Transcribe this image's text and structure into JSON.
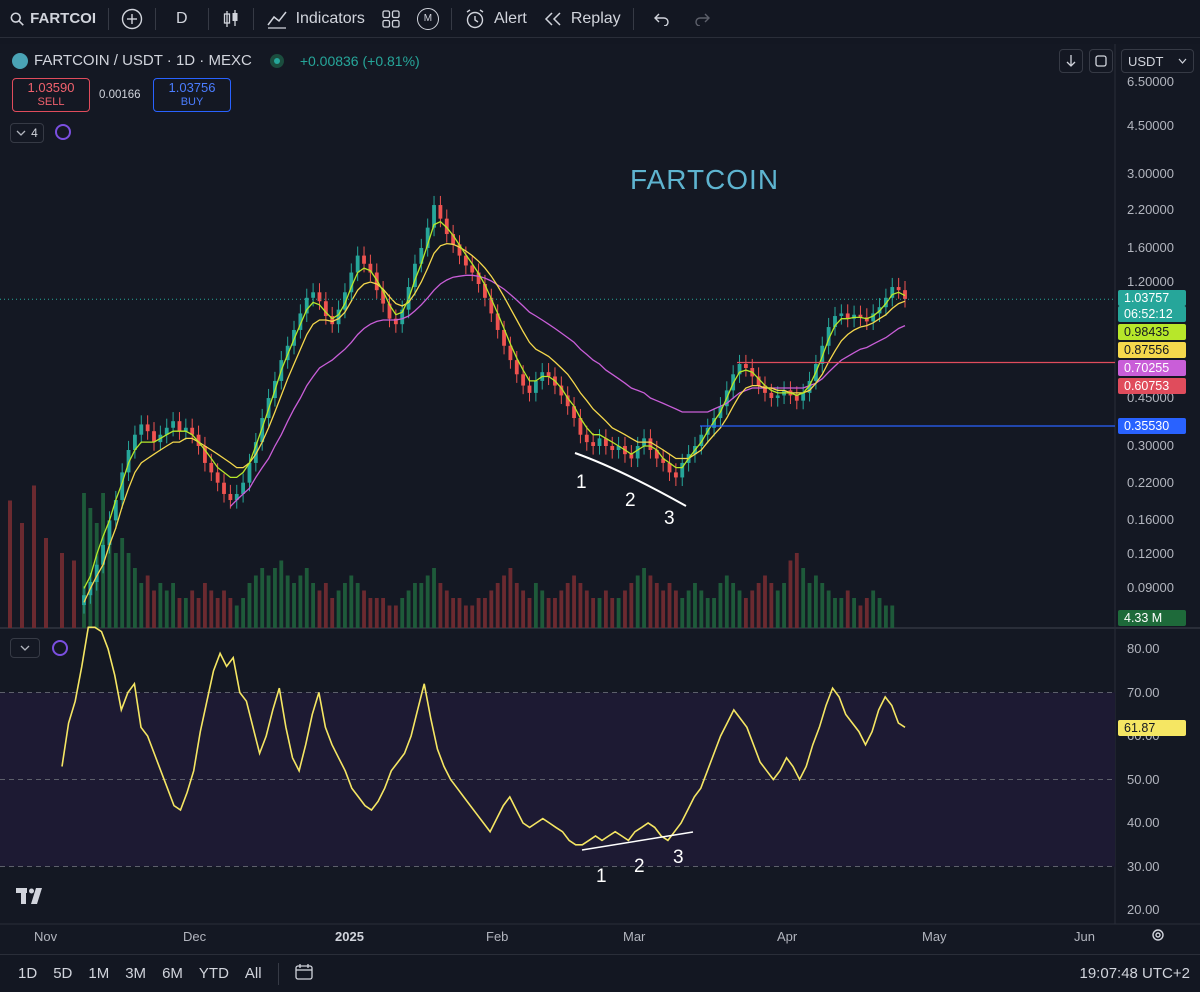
{
  "toolbar": {
    "symbol": "FARTCOI",
    "interval": "D",
    "indicators": "Indicators",
    "templates_badge": "M",
    "alert": "Alert",
    "replay": "Replay"
  },
  "legend": {
    "title": "FARTCOIN / USDT · 1D · MEXC",
    "change": "+0.00836 (+0.81%)",
    "sell_price": "1.03590",
    "sell_label": "SELL",
    "spread": "0.00166",
    "buy_price": "1.03756",
    "buy_label": "BUY",
    "indicator_count": "4",
    "currency": "USDT"
  },
  "chart_data": {
    "type": "candlestick",
    "title": "FARTCOIN",
    "y_scale": "log",
    "y_ticks": [
      "6.50000",
      "4.50000",
      "3.00000",
      "2.20000",
      "1.60000",
      "1.20000",
      "0.45000",
      "0.30000",
      "0.22000",
      "0.16000",
      "0.12000",
      "0.09000"
    ],
    "x_ticks": [
      "Nov",
      "Dec",
      "2025",
      "Feb",
      "Mar",
      "Apr",
      "May",
      "Jun"
    ],
    "price_tags": [
      {
        "value": "1.03757",
        "color": "#26a69a"
      },
      {
        "value": "06:52:12",
        "color": "#26a69a"
      },
      {
        "value": "0.98435",
        "color": "#b7e72a"
      },
      {
        "value": "0.87556",
        "color": "#f5d84c"
      },
      {
        "value": "0.70255",
        "color": "#c95ed8"
      },
      {
        "value": "0.60753",
        "color": "#e04c5c"
      },
      {
        "value": "0.35530",
        "color": "#2962ff"
      }
    ],
    "volume_tag": "4.33 M",
    "horizontal_levels": [
      {
        "value": 0.6075,
        "color": "#e04c5c"
      },
      {
        "value": 0.3553,
        "color": "#2962ff"
      }
    ],
    "annotations": [
      "1",
      "2",
      "3"
    ],
    "closes": [
      0.085,
      0.095,
      0.11,
      0.13,
      0.16,
      0.19,
      0.24,
      0.29,
      0.33,
      0.36,
      0.34,
      0.31,
      0.33,
      0.35,
      0.37,
      0.34,
      0.35,
      0.33,
      0.3,
      0.26,
      0.24,
      0.22,
      0.2,
      0.19,
      0.2,
      0.22,
      0.26,
      0.31,
      0.38,
      0.45,
      0.52,
      0.62,
      0.7,
      0.8,
      0.92,
      1.05,
      1.1,
      1.02,
      0.9,
      0.84,
      0.95,
      1.1,
      1.3,
      1.5,
      1.4,
      1.3,
      1.12,
      1.0,
      0.88,
      0.84,
      0.95,
      1.15,
      1.4,
      1.6,
      1.9,
      2.3,
      2.05,
      1.8,
      1.65,
      1.5,
      1.38,
      1.3,
      1.18,
      1.05,
      0.92,
      0.8,
      0.7,
      0.62,
      0.55,
      0.5,
      0.47,
      0.52,
      0.56,
      0.54,
      0.5,
      0.46,
      0.42,
      0.38,
      0.33,
      0.31,
      0.3,
      0.32,
      0.3,
      0.29,
      0.3,
      0.28,
      0.27,
      0.3,
      0.32,
      0.29,
      0.27,
      0.26,
      0.24,
      0.23,
      0.26,
      0.28,
      0.3,
      0.33,
      0.35,
      0.38,
      0.42,
      0.48,
      0.55,
      0.6,
      0.58,
      0.54,
      0.5,
      0.47,
      0.45,
      0.46,
      0.48,
      0.46,
      0.44,
      0.47,
      0.52,
      0.6,
      0.7,
      0.82,
      0.9,
      0.92,
      0.88,
      0.91,
      0.89,
      0.86,
      0.92,
      0.97,
      1.05,
      1.15,
      1.12,
      1.04
    ],
    "ema_fast": [
      0.09,
      0.1,
      0.12,
      0.14,
      0.16,
      0.19,
      0.22,
      0.26,
      0.29,
      0.31,
      0.31,
      0.31,
      0.32,
      0.33,
      0.34,
      0.34,
      0.34,
      0.33,
      0.31,
      0.29,
      0.27,
      0.25,
      0.24,
      0.23,
      0.23,
      0.24,
      0.26,
      0.3,
      0.35,
      0.41,
      0.48,
      0.57,
      0.65,
      0.74,
      0.84,
      0.95,
      1.01,
      0.99,
      0.93,
      0.88,
      0.91,
      1.0,
      1.15,
      1.3,
      1.35,
      1.32,
      1.22,
      1.11,
      0.99,
      0.91,
      0.93,
      1.04,
      1.22,
      1.4,
      1.65,
      1.95,
      2.0,
      1.9,
      1.78,
      1.64,
      1.51,
      1.4,
      1.29,
      1.17,
      1.04,
      0.92,
      0.81,
      0.71,
      0.63,
      0.57,
      0.52,
      0.52,
      0.54,
      0.54,
      0.52,
      0.49,
      0.45,
      0.42,
      0.38,
      0.35,
      0.33,
      0.33,
      0.32,
      0.31,
      0.3,
      0.29,
      0.28,
      0.29,
      0.3,
      0.3,
      0.29,
      0.27,
      0.26,
      0.25,
      0.25,
      0.27,
      0.29,
      0.31,
      0.34,
      0.37,
      0.4,
      0.45,
      0.51,
      0.56,
      0.57,
      0.56,
      0.53,
      0.5,
      0.48,
      0.47,
      0.47,
      0.47,
      0.46,
      0.47,
      0.5,
      0.56,
      0.64,
      0.74,
      0.83,
      0.88,
      0.88,
      0.89,
      0.89,
      0.88,
      0.9,
      0.94,
      1.0,
      1.08,
      1.1,
      1.07
    ],
    "ema_mid": [
      0.08,
      0.09,
      0.1,
      0.11,
      0.13,
      0.15,
      0.18,
      0.21,
      0.24,
      0.26,
      0.27,
      0.28,
      0.29,
      0.3,
      0.31,
      0.31,
      0.32,
      0.32,
      0.31,
      0.3,
      0.29,
      0.28,
      0.27,
      0.26,
      0.25,
      0.25,
      0.26,
      0.28,
      0.31,
      0.35,
      0.4,
      0.46,
      0.53,
      0.6,
      0.68,
      0.77,
      0.84,
      0.87,
      0.87,
      0.86,
      0.88,
      0.93,
      1.02,
      1.12,
      1.18,
      1.2,
      1.18,
      1.13,
      1.06,
      1.0,
      0.98,
      1.01,
      1.09,
      1.2,
      1.35,
      1.53,
      1.63,
      1.66,
      1.65,
      1.61,
      1.56,
      1.5,
      1.43,
      1.35,
      1.26,
      1.16,
      1.06,
      0.96,
      0.87,
      0.79,
      0.72,
      0.68,
      0.66,
      0.64,
      0.61,
      0.58,
      0.55,
      0.51,
      0.47,
      0.44,
      0.41,
      0.39,
      0.37,
      0.35,
      0.34,
      0.33,
      0.32,
      0.31,
      0.31,
      0.31,
      0.3,
      0.29,
      0.28,
      0.27,
      0.27,
      0.27,
      0.28,
      0.29,
      0.31,
      0.33,
      0.35,
      0.38,
      0.42,
      0.46,
      0.49,
      0.5,
      0.5,
      0.49,
      0.49,
      0.48,
      0.48,
      0.47,
      0.47,
      0.47,
      0.48,
      0.51,
      0.55,
      0.61,
      0.67,
      0.73,
      0.77,
      0.8,
      0.82,
      0.83,
      0.85,
      0.88,
      0.91,
      0.96,
      1.0,
      1.02
    ],
    "ema_slow": [
      null,
      null,
      null,
      null,
      null,
      null,
      null,
      null,
      null,
      null,
      null,
      null,
      null,
      null,
      null,
      null,
      null,
      null,
      null,
      null,
      null,
      null,
      null,
      0.18,
      0.19,
      0.2,
      0.21,
      0.23,
      0.25,
      0.27,
      0.3,
      0.33,
      0.37,
      0.41,
      0.45,
      0.5,
      0.54,
      0.58,
      0.6,
      0.62,
      0.65,
      0.68,
      0.72,
      0.77,
      0.81,
      0.84,
      0.86,
      0.87,
      0.87,
      0.87,
      0.88,
      0.9,
      0.94,
      0.99,
      1.05,
      1.12,
      1.18,
      1.22,
      1.25,
      1.26,
      1.27,
      1.27,
      1.26,
      1.24,
      1.21,
      1.17,
      1.13,
      1.08,
      1.03,
      0.98,
      0.93,
      0.9,
      0.87,
      0.84,
      0.81,
      0.78,
      0.75,
      0.72,
      0.68,
      0.65,
      0.62,
      0.6,
      0.57,
      0.55,
      0.53,
      0.51,
      0.49,
      0.48,
      0.47,
      0.45,
      0.44,
      0.43,
      0.42,
      0.41,
      0.4,
      0.4,
      0.4,
      0.4,
      0.4,
      0.41,
      0.42,
      0.43,
      0.45,
      0.47,
      0.48,
      0.49,
      0.49,
      0.49,
      0.49,
      0.49,
      0.49,
      0.49,
      0.49,
      0.49,
      0.5,
      0.51,
      0.53,
      0.56,
      0.59,
      0.62,
      0.64,
      0.66,
      0.68,
      0.69,
      0.71,
      0.73,
      0.75,
      0.78,
      0.81,
      0.83
    ],
    "volume": [
      0.9,
      0.8,
      0.7,
      0.9,
      0.6,
      0.5,
      0.6,
      0.5,
      0.4,
      0.3,
      0.35,
      0.25,
      0.3,
      0.25,
      0.3,
      0.2,
      0.2,
      0.25,
      0.2,
      0.3,
      0.25,
      0.2,
      0.25,
      0.2,
      0.15,
      0.2,
      0.3,
      0.35,
      0.4,
      0.35,
      0.4,
      0.45,
      0.35,
      0.3,
      0.35,
      0.4,
      0.3,
      0.25,
      0.3,
      0.2,
      0.25,
      0.3,
      0.35,
      0.3,
      0.25,
      0.2,
      0.2,
      0.2,
      0.15,
      0.15,
      0.2,
      0.25,
      0.3,
      0.3,
      0.35,
      0.4,
      0.3,
      0.25,
      0.2,
      0.2,
      0.15,
      0.15,
      0.2,
      0.2,
      0.25,
      0.3,
      0.35,
      0.4,
      0.3,
      0.25,
      0.2,
      0.3,
      0.25,
      0.2,
      0.2,
      0.25,
      0.3,
      0.35,
      0.3,
      0.25,
      0.2,
      0.2,
      0.25,
      0.2,
      0.2,
      0.25,
      0.3,
      0.35,
      0.4,
      0.35,
      0.3,
      0.25,
      0.3,
      0.25,
      0.2,
      0.25,
      0.3,
      0.25,
      0.2,
      0.2,
      0.3,
      0.35,
      0.3,
      0.25,
      0.2,
      0.25,
      0.3,
      0.35,
      0.3,
      0.25,
      0.3,
      0.45,
      0.5,
      0.4,
      0.3,
      0.35,
      0.3,
      0.25,
      0.2,
      0.2,
      0.25,
      0.2,
      0.15,
      0.2,
      0.25,
      0.2,
      0.15,
      0.15
    ],
    "rsi": {
      "current": "61.87",
      "y_ticks": [
        "80.00",
        "70.00",
        "60.00",
        "50.00",
        "40.00",
        "30.00",
        "20.00"
      ],
      "values": [
        53,
        63,
        68,
        76,
        85,
        88,
        84,
        80,
        74,
        66,
        70,
        72,
        62,
        60,
        56,
        52,
        48,
        44,
        43,
        47,
        52,
        61,
        68,
        75,
        79,
        76,
        78,
        70,
        68,
        62,
        56,
        60,
        66,
        71,
        62,
        55,
        52,
        58,
        65,
        70,
        62,
        58,
        55,
        52,
        48,
        46,
        44,
        43,
        45,
        48,
        52,
        54,
        56,
        60,
        66,
        72,
        64,
        57,
        53,
        50,
        48,
        46,
        44,
        42,
        40,
        38,
        41,
        44,
        46,
        43,
        40,
        39,
        40,
        41,
        40,
        39,
        38,
        36,
        35,
        35,
        36,
        37,
        36,
        37,
        38,
        37,
        36,
        38,
        39,
        40,
        39,
        37,
        36,
        38,
        40,
        43,
        46,
        48,
        52,
        56,
        60,
        63,
        66,
        64,
        62,
        58,
        54,
        52,
        50,
        52,
        55,
        53,
        50,
        53,
        58,
        62,
        67,
        71,
        69,
        65,
        63,
        61,
        58,
        61,
        66,
        69,
        67,
        63,
        62
      ]
    }
  },
  "bottombar": {
    "timeframes": [
      "1D",
      "5D",
      "1M",
      "3M",
      "6M",
      "YTD",
      "All"
    ],
    "clock": "19:07:48 UTC+2"
  }
}
